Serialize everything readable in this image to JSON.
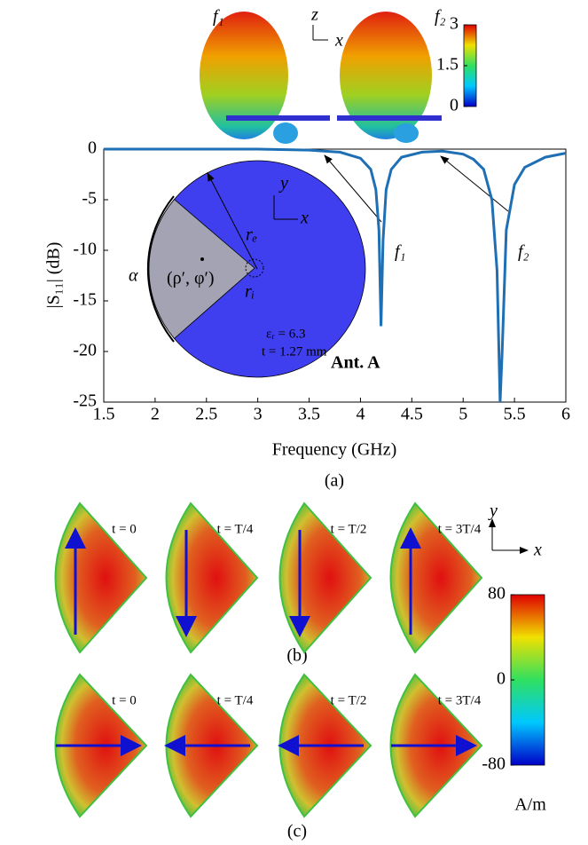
{
  "chart_data": {
    "type": "line",
    "xlabel": "Frequency (GHz)",
    "ylabel": "|S₁₁| (dB)",
    "caption": "(a)",
    "x": [
      1.5,
      2,
      2.5,
      3,
      3.5,
      3.8,
      4.0,
      4.1,
      4.15,
      4.18,
      4.2,
      4.22,
      4.25,
      4.3,
      4.4,
      4.6,
      4.8,
      5.0,
      5.1,
      5.2,
      5.28,
      5.33,
      5.36,
      5.38,
      5.42,
      5.5,
      5.6,
      5.8,
      6.0
    ],
    "series": [
      {
        "color": "#1f6fb5",
        "values": [
          0,
          0,
          0,
          0,
          -0.1,
          -0.3,
          -0.9,
          -2,
          -4,
          -8,
          -17.5,
          -9,
          -4,
          -2,
          -0.8,
          -0.3,
          -0.2,
          -0.5,
          -1,
          -2,
          -5,
          -12,
          -25,
          -20,
          -8,
          -3.5,
          -1.8,
          -0.8,
          -0.4
        ]
      }
    ],
    "xlim": [
      1.5,
      6
    ],
    "ylim": [
      -25,
      0
    ],
    "xticks": [
      1.5,
      2,
      2.5,
      3,
      3.5,
      4,
      4.5,
      5,
      5.5,
      6
    ],
    "yticks": [
      -25,
      -20,
      -15,
      -10,
      -5,
      0
    ],
    "annotations": {
      "f1": "f₁",
      "f2": "f₂",
      "antenna": "Ant. A",
      "eps": "εᵣ = 6.3",
      "thick": "t = 1.27 mm",
      "alpha": "α",
      "feed": "(ρ′, φ′)",
      "re": "rₑ",
      "ri": "rᵢ",
      "ax_x": "x",
      "ax_y": "y"
    }
  },
  "pattern": {
    "labels": [
      "f₁",
      "f₂"
    ],
    "axis_z": "z",
    "axis_x": "x",
    "colorbar": {
      "lim": [
        0,
        3
      ],
      "ticks": [
        0,
        1.5,
        3
      ]
    }
  },
  "currents": {
    "times": [
      "t = 0",
      "t = T/4",
      "t = T/2",
      "t = 3T/4"
    ],
    "captions": [
      "(b)",
      "(c)"
    ],
    "axis_x": "x",
    "axis_y": "y",
    "colorbar": {
      "lim": [
        -80,
        80
      ],
      "ticks": [
        -80,
        0,
        80
      ],
      "unit": "A/m"
    }
  }
}
